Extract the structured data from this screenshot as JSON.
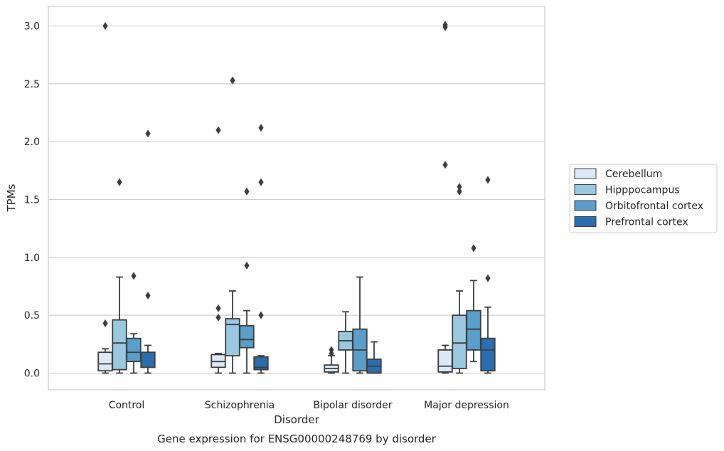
{
  "chart_data": {
    "type": "box",
    "title": "",
    "caption": "Gene expression for ENSG00000248769 by disorder",
    "xlabel": "Disorder",
    "ylabel": "TPMs",
    "ylim": [
      -0.15,
      3.17
    ],
    "yticks": [
      "0.0",
      "0.5",
      "1.0",
      "1.5",
      "2.0",
      "2.5",
      "3.0"
    ],
    "grid": "horizontal",
    "legend_position": "right",
    "categories": [
      "Control",
      "Schizophrenia",
      "Bipolar disorder",
      "Major depression"
    ],
    "series": [
      {
        "name": "Cerebellum",
        "color": "#dbe9f6",
        "boxes": [
          {
            "whisker_low": 0.0,
            "q1": 0.02,
            "median": 0.08,
            "q3": 0.18,
            "whisker_high": 0.21,
            "outliers": [
              0.43,
              3.0
            ]
          },
          {
            "whisker_low": 0.0,
            "q1": 0.05,
            "median": 0.1,
            "q3": 0.16,
            "whisker_high": 0.17,
            "outliers": [
              0.48,
              0.56,
              2.1
            ]
          },
          {
            "whisker_low": 0.0,
            "q1": 0.01,
            "median": 0.04,
            "q3": 0.07,
            "whisker_high": 0.15,
            "outliers": [
              0.17,
              0.2
            ]
          },
          {
            "whisker_low": 0.0,
            "q1": 0.01,
            "median": 0.06,
            "q3": 0.2,
            "whisker_high": 0.24,
            "outliers": [
              1.8,
              2.99,
              3.01
            ]
          }
        ]
      },
      {
        "name": "Hipppocampus",
        "color": "#9ac8e0",
        "boxes": [
          {
            "whisker_low": 0.0,
            "q1": 0.03,
            "median": 0.26,
            "q3": 0.46,
            "whisker_high": 0.83,
            "outliers": [
              1.65
            ]
          },
          {
            "whisker_low": 0.0,
            "q1": 0.15,
            "median": 0.42,
            "q3": 0.47,
            "whisker_high": 0.71,
            "outliers": [
              2.53
            ]
          },
          {
            "whisker_low": 0.0,
            "q1": 0.2,
            "median": 0.28,
            "q3": 0.36,
            "whisker_high": 0.53,
            "outliers": []
          },
          {
            "whisker_low": 0.0,
            "q1": 0.04,
            "median": 0.26,
            "q3": 0.5,
            "whisker_high": 0.71,
            "outliers": [
              1.57,
              1.61
            ]
          }
        ]
      },
      {
        "name": "Orbitofrontal cortex",
        "color": "#5a9ecc",
        "boxes": [
          {
            "whisker_low": 0.0,
            "q1": 0.1,
            "median": 0.18,
            "q3": 0.3,
            "whisker_high": 0.34,
            "outliers": [
              0.84
            ]
          },
          {
            "whisker_low": 0.0,
            "q1": 0.22,
            "median": 0.29,
            "q3": 0.41,
            "whisker_high": 0.54,
            "outliers": [
              0.93,
              1.57
            ]
          },
          {
            "whisker_low": 0.0,
            "q1": 0.02,
            "median": 0.2,
            "q3": 0.38,
            "whisker_high": 0.83,
            "outliers": []
          },
          {
            "whisker_low": 0.1,
            "q1": 0.2,
            "median": 0.38,
            "q3": 0.54,
            "whisker_high": 0.8,
            "outliers": [
              1.08
            ]
          }
        ]
      },
      {
        "name": "Prefrontal cortex",
        "color": "#2a6eb0",
        "boxes": [
          {
            "whisker_low": 0.0,
            "q1": 0.05,
            "median": 0.05,
            "q3": 0.18,
            "whisker_high": 0.24,
            "outliers": [
              0.67,
              2.07
            ]
          },
          {
            "whisker_low": 0.0,
            "q1": 0.03,
            "median": 0.05,
            "q3": 0.14,
            "whisker_high": 0.15,
            "outliers": [
              0.5,
              1.65,
              2.12
            ]
          },
          {
            "whisker_low": 0.0,
            "q1": 0.0,
            "median": 0.06,
            "q3": 0.12,
            "whisker_high": 0.27,
            "outliers": []
          },
          {
            "whisker_low": 0.0,
            "q1": 0.02,
            "median": 0.2,
            "q3": 0.3,
            "whisker_high": 0.57,
            "outliers": [
              0.82,
              1.67
            ]
          }
        ]
      }
    ]
  }
}
